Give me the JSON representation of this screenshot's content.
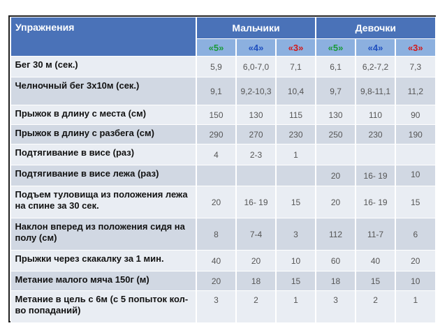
{
  "header": {
    "exercises": "Упражнения",
    "boys": "Мальчики",
    "girls": "Девочки",
    "grades": [
      "«5»",
      "«4»",
      "«3»"
    ]
  },
  "rows": [
    {
      "name": "Бег 30 м  (сек.)",
      "boys": [
        "5,9",
        "6,0-7,0",
        "7,1"
      ],
      "girls": [
        "6,1",
        "6,2-7,2",
        "7,3"
      ]
    },
    {
      "name": "Челночный бег 3х10м (сек.)",
      "boys": [
        "9,1",
        "9,2-10,3",
        "10,4"
      ],
      "girls": [
        "9,7",
        "9,8-11,1",
        "11,2"
      ]
    },
    {
      "name": "Прыжок в длину с места (см)",
      "boys": [
        "150",
        "130",
        "115"
      ],
      "girls": [
        "130",
        "110",
        "90"
      ]
    },
    {
      "name": "Прыжок  в длину с разбега (см)",
      "boys": [
        "290",
        "270",
        "230"
      ],
      "girls": [
        "250",
        "230",
        "190"
      ]
    },
    {
      "name": "Подтягивание в висе (раз)",
      "boys": [
        "4",
        "2-3",
        "1"
      ],
      "girls": [
        "",
        "",
        ""
      ]
    },
    {
      "name": "Подтягивание в висе лежа (раз)",
      "boys": [
        "",
        "",
        ""
      ],
      "girls": [
        "20",
        "16- 19",
        "10"
      ]
    },
    {
      "name": "Подъем туловища из положения лежа на спине  за 30 сек.",
      "boys": [
        "20",
        "16- 19",
        "15"
      ],
      "girls": [
        "20",
        "16- 19",
        "15"
      ]
    },
    {
      "name": "Наклон вперед из положения сидя на полу (см)",
      "boys": [
        "8",
        "7-4",
        "3"
      ],
      "girls": [
        "112",
        "11-7",
        "6"
      ]
    },
    {
      "name": "Прыжки через скакалку за 1 мин.",
      "boys": [
        "40",
        "20",
        "10"
      ],
      "girls": [
        "60",
        "40",
        "20"
      ]
    },
    {
      "name": "Метание малого мяча 150г (м)",
      "boys": [
        "20",
        "18",
        "15"
      ],
      "girls": [
        "18",
        "15",
        "10"
      ]
    },
    {
      "name": "Метание в цель с 6м (с 5 попыток кол-во попаданий)",
      "boys": [
        "3",
        "2",
        "1"
      ],
      "girls": [
        "3",
        "2",
        "1"
      ]
    }
  ],
  "colors": {
    "header_dark": "#4a72b8",
    "header_light": "#8cb0df",
    "grade5": "#1a9a3a",
    "grade4": "#1f4fbf",
    "grade3": "#d21a1a"
  }
}
